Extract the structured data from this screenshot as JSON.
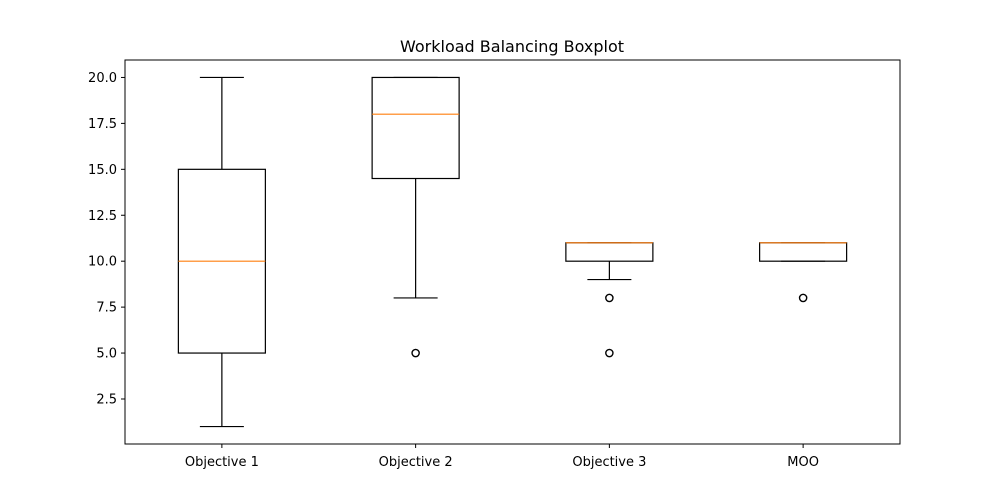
{
  "chart_data": {
    "type": "boxplot",
    "title": "Workload Balancing Boxplot",
    "xlabel": "",
    "ylabel": "",
    "ylim": [
      0.05,
      20.95
    ],
    "yticks": [
      2.5,
      5.0,
      7.5,
      10.0,
      12.5,
      15.0,
      17.5,
      20.0
    ],
    "ytick_labels": [
      "2.5",
      "5.0",
      "7.5",
      "10.0",
      "12.5",
      "15.0",
      "17.5",
      "20.0"
    ],
    "grid": false,
    "legend": "none",
    "categories": [
      "Objective 1",
      "Objective 2",
      "Objective 3",
      "MOO"
    ],
    "boxes": [
      {
        "category": "Objective 1",
        "whisker_low": 1,
        "q1": 5,
        "median": 10,
        "q3": 15,
        "whisker_high": 20,
        "outliers": []
      },
      {
        "category": "Objective 2",
        "whisker_low": 8,
        "q1": 14.5,
        "median": 18,
        "q3": 20,
        "whisker_high": 20,
        "outliers": [
          5
        ]
      },
      {
        "category": "Objective 3",
        "whisker_low": 9,
        "q1": 10,
        "median": 11,
        "q3": 11,
        "whisker_high": 11,
        "outliers": [
          8,
          5
        ]
      },
      {
        "category": "MOO",
        "whisker_low": 10,
        "q1": 10,
        "median": 11,
        "q3": 11,
        "whisker_high": 11,
        "outliers": [
          8
        ]
      }
    ],
    "colors": {
      "box": "#000000",
      "median": "#ff7f0e",
      "outlier": "#000000"
    }
  }
}
